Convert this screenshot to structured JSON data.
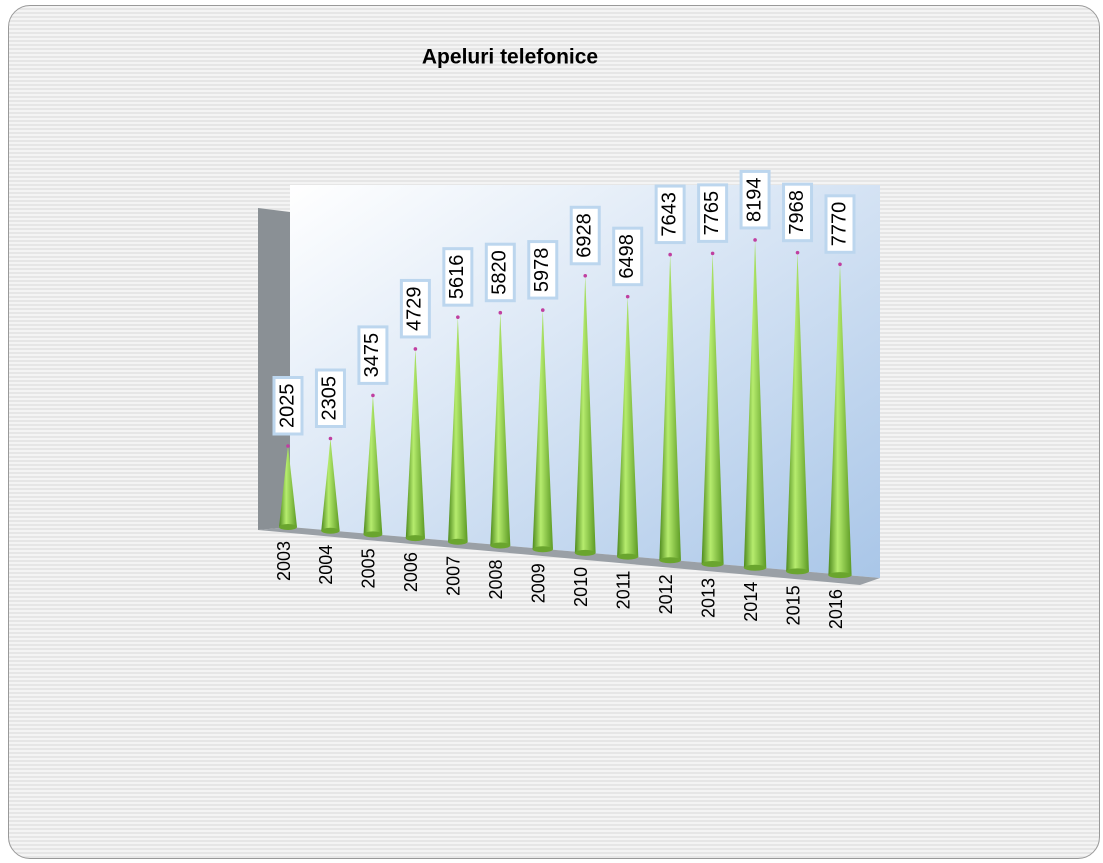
{
  "chart_data": {
    "type": "bar",
    "title": "Apeluri telefonice",
    "categories": [
      "2003",
      "2004",
      "2005",
      "2006",
      "2007",
      "2008",
      "2009",
      "2010",
      "2011",
      "2012",
      "2013",
      "2014",
      "2015",
      "2016"
    ],
    "values": [
      2025,
      2305,
      3475,
      4729,
      5616,
      5820,
      5978,
      6928,
      6498,
      7643,
      7765,
      8194,
      7968,
      7770
    ],
    "color": "#8fd14f"
  }
}
